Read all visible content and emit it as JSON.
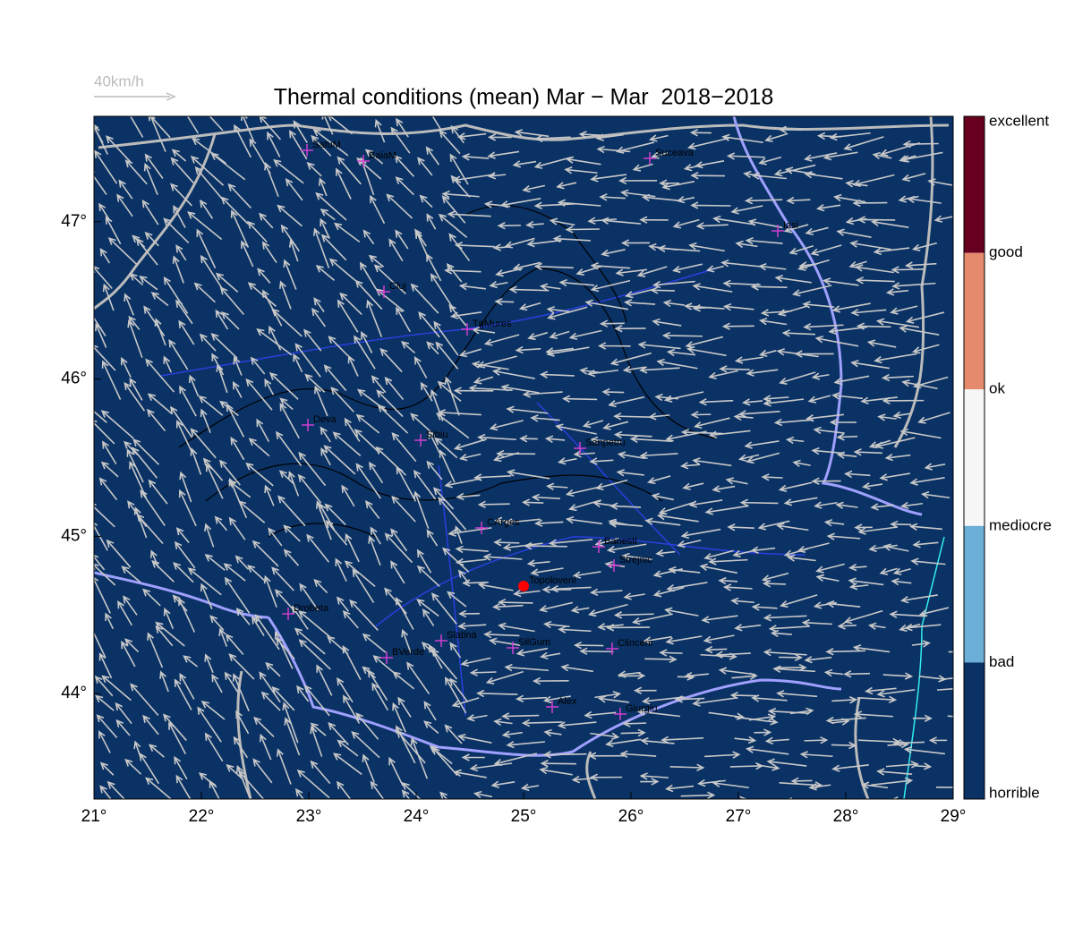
{
  "header": {
    "wind_scale": "40km/h",
    "title": "Thermal conditions (mean) Mar − Mar  2018−2018"
  },
  "map": {
    "xlim": [
      21,
      29
    ],
    "ylim": [
      43.33,
      47.67
    ],
    "xticks": [
      {
        "value": 21,
        "label": "21°"
      },
      {
        "value": 22,
        "label": "22°"
      },
      {
        "value": 23,
        "label": "23°"
      },
      {
        "value": 24,
        "label": "24°"
      },
      {
        "value": 25,
        "label": "25°"
      },
      {
        "value": 26,
        "label": "26°"
      },
      {
        "value": 27,
        "label": "27°"
      },
      {
        "value": 28,
        "label": "28°"
      },
      {
        "value": 29,
        "label": "29°"
      }
    ],
    "yticks": [
      {
        "value": 44,
        "label": "44°"
      },
      {
        "value": 45,
        "label": "45°"
      },
      {
        "value": 46,
        "label": "46°"
      },
      {
        "value": 47,
        "label": "47°"
      }
    ],
    "background_color": "#0a3265",
    "arrow_color": "#c8c8c8"
  },
  "cities": [
    "SatuM",
    "BaiaM",
    "Suceava",
    "Iasi",
    "Cluj",
    "TgMures",
    "Deva",
    "Sibiu",
    "Sanpetru",
    "CArges",
    "Banesti",
    "Strejnic",
    "Topoloveni",
    "Drobeta",
    "Slatina",
    "SilGum",
    "Clinceni",
    "BVerde",
    "Alex",
    "Giurgiu"
  ],
  "legend": {
    "labels": [
      "excellent",
      "good",
      "ok",
      "mediocre",
      "bad",
      "horrible"
    ],
    "colors": [
      "#67001f",
      "#e58a6d",
      "#f7f7f7",
      "#6baed6",
      "#0a3265"
    ]
  }
}
